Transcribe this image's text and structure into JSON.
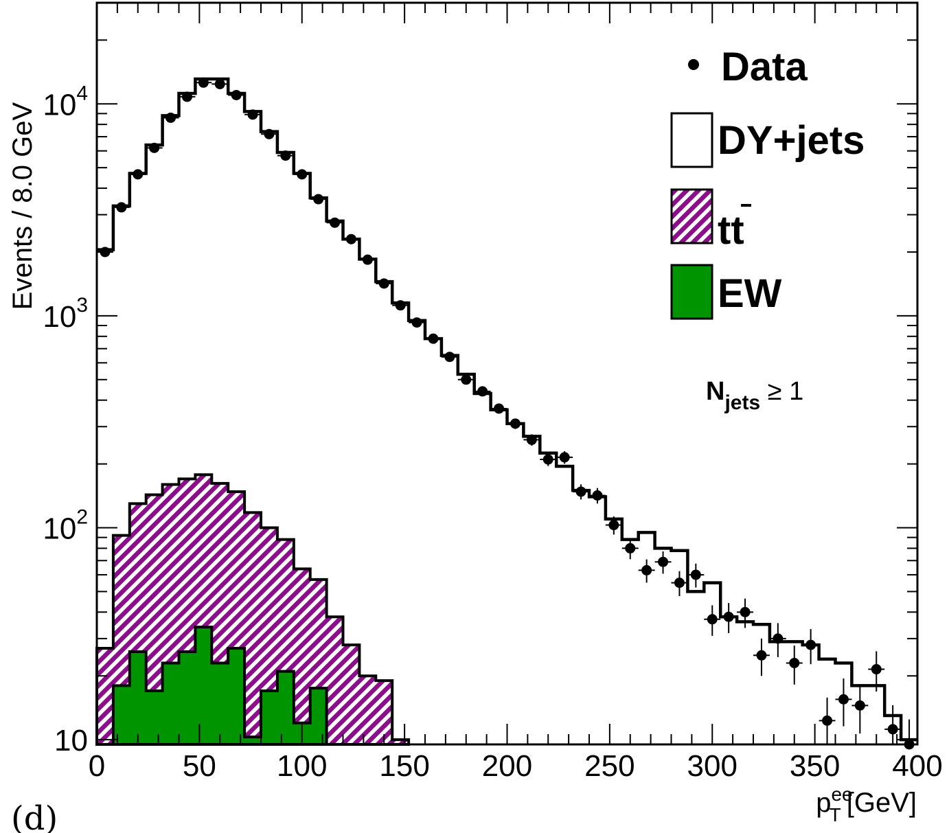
{
  "chart_data": {
    "type": "histogram",
    "x_scale": "linear",
    "y_scale": "log",
    "xlim": [
      0,
      400
    ],
    "ylim": [
      9.5,
      30000
    ],
    "bin_width": 8,
    "xlabel": "[GeV]",
    "xlabel_symbol": "p",
    "xlabel_sub": "T",
    "xlabel_sup": "ee",
    "ylabel": "Events / 8.0 GeV",
    "panel_label": "(d)",
    "annotation": {
      "main": "N",
      "sub": "jets",
      "rest": " ≥ 1"
    },
    "x_ticks": [
      "0",
      "50",
      "100",
      "150",
      "200",
      "250",
      "300",
      "350",
      "400"
    ],
    "y_ticks": [
      {
        "base": "10",
        "exp": "",
        "value": 10
      },
      {
        "base": "10",
        "exp": "2",
        "value": 100
      },
      {
        "base": "10",
        "exp": "3",
        "value": 1000
      },
      {
        "base": "10",
        "exp": "4",
        "value": 10000
      }
    ],
    "legend": [
      {
        "name": "Data",
        "kind": "marker"
      },
      {
        "name": "DY+jets",
        "kind": "box-white"
      },
      {
        "name": "tt",
        "bar": "t",
        "kind": "box-hatch"
      },
      {
        "name": "EW",
        "kind": "box-green"
      }
    ],
    "series": {
      "dy_total": {
        "name": "DY+jets",
        "bin_edges_start": 0,
        "values": [
          2050,
          3300,
          4700,
          6400,
          8800,
          11200,
          13100,
          13100,
          11200,
          9200,
          7400,
          5900,
          4700,
          3600,
          2800,
          2300,
          1850,
          1450,
          1150,
          950,
          780,
          650,
          530,
          430,
          360,
          310,
          270,
          225,
          195,
          150,
          140,
          110,
          88,
          95,
          80,
          78,
          50,
          55,
          38,
          36,
          35,
          29,
          29,
          28,
          24,
          23,
          18,
          18,
          13,
          10
        ]
      },
      "ttbar": {
        "name": "tt",
        "bin_edges_start": 0,
        "values": [
          27,
          92,
          130,
          143,
          160,
          170,
          178,
          162,
          148,
          118,
          100,
          88,
          64,
          57,
          38,
          28,
          20,
          19,
          10
        ]
      },
      "ew": {
        "name": "EW",
        "bin_edges_start": 8,
        "values": [
          18,
          26,
          17,
          23,
          26,
          34,
          23,
          27,
          10.3,
          17,
          21,
          12,
          17.5
        ]
      },
      "data": {
        "name": "Data",
        "x": [
          4,
          12,
          20,
          28,
          36,
          44,
          52,
          60,
          68,
          76,
          84,
          92,
          100,
          108,
          116,
          124,
          132,
          140,
          148,
          156,
          164,
          172,
          180,
          188,
          196,
          204,
          212,
          220,
          228,
          236,
          244,
          252,
          260,
          268,
          276,
          284,
          292,
          300,
          308,
          316,
          324,
          332,
          340,
          348,
          356,
          364,
          372,
          380,
          388,
          396
        ],
        "y": [
          2000,
          3250,
          4650,
          6200,
          8600,
          10800,
          12600,
          12400,
          11000,
          8900,
          7200,
          5700,
          4650,
          3550,
          2750,
          2300,
          1840,
          1420,
          1120,
          930,
          780,
          640,
          500,
          440,
          365,
          310,
          260,
          210,
          215,
          148,
          142,
          103,
          80,
          63,
          69,
          55,
          60,
          37,
          38,
          40,
          25,
          30,
          23,
          28,
          12.3,
          15.5,
          14.5,
          21.5,
          11.2,
          9.4
        ]
      }
    }
  }
}
